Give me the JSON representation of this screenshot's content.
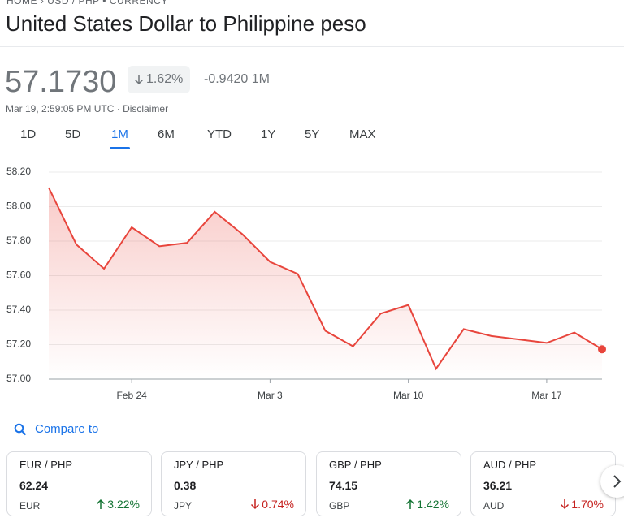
{
  "breadcrumb": {
    "home": "HOME",
    "pair": "USD / PHP",
    "kind": "CURRENCY"
  },
  "header": {
    "title": "United States Dollar to Philippine peso"
  },
  "quote": {
    "price": "57.1730",
    "change_percent": "1.62%",
    "change": "-0.9420",
    "period": "1M",
    "timestamp": "Mar 19, 2:59:05 PM UTC",
    "disclaimer": "Disclaimer"
  },
  "ranges": [
    "1D",
    "5D",
    "1M",
    "6M",
    "YTD",
    "1Y",
    "5Y",
    "MAX"
  ],
  "active_range": 2,
  "chart_data": {
    "type": "line",
    "categories": [
      null,
      null,
      null,
      "Feb 24",
      null,
      null,
      null,
      null,
      "Mar 3",
      null,
      null,
      null,
      null,
      "Mar 10",
      null,
      null,
      null,
      null,
      "Mar 17",
      null,
      null
    ],
    "values": [
      58.11,
      57.78,
      57.64,
      57.88,
      57.77,
      57.79,
      57.97,
      57.84,
      57.68,
      57.61,
      57.28,
      57.19,
      57.38,
      57.43,
      57.06,
      57.29,
      57.25,
      57.23,
      57.21,
      57.27,
      57.173
    ],
    "color": "#e8453c",
    "ylim": [
      57.0,
      58.2
    ],
    "yticks": [
      {
        "value": 57.0,
        "label": "57.00"
      },
      {
        "value": 57.2,
        "label": "57.20"
      },
      {
        "value": 57.4,
        "label": "57.40"
      },
      {
        "value": 57.6,
        "label": "57.60"
      },
      {
        "value": 57.8,
        "label": "57.80"
      },
      {
        "value": 58.0,
        "label": "58.00"
      },
      {
        "value": 58.2,
        "label": "58.20"
      }
    ],
    "grid": true
  },
  "compare": {
    "label": "Compare to"
  },
  "cards": [
    {
      "pair": "EUR / PHP",
      "value": "62.24",
      "code": "EUR",
      "change": "3.22%",
      "direction": "up"
    },
    {
      "pair": "JPY / PHP",
      "value": "0.38",
      "code": "JPY",
      "change": "0.74%",
      "direction": "down"
    },
    {
      "pair": "GBP / PHP",
      "value": "74.15",
      "code": "GBP",
      "change": "1.42%",
      "direction": "up"
    },
    {
      "pair": "AUD / PHP",
      "value": "36.21",
      "code": "AUD",
      "change": "1.70%",
      "direction": "down"
    }
  ]
}
